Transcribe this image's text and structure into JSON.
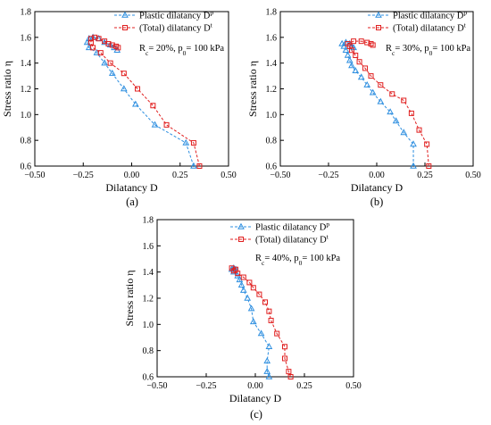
{
  "chart_data": [
    {
      "type": "line",
      "caption": "(a)",
      "annotation": "R_c= 20%, p_0= 100 kPa",
      "xlabel": "Dilatancy D",
      "ylabel": "Stress ratio η",
      "xlim": [
        -0.5,
        0.5
      ],
      "ylim": [
        0.6,
        1.8
      ],
      "xticks": [
        "−0.50",
        "−0.25",
        "0.00",
        "0.25",
        "0.50"
      ],
      "yticks": [
        "0.6",
        "0.8",
        "1.0",
        "1.2",
        "1.4",
        "1.6",
        "1.8"
      ],
      "legend_position": "top-right",
      "series": [
        {
          "name": "Plastic dilatancy D^p",
          "color": "#2e8fe0",
          "marker": "triangle",
          "points": [
            [
              0.32,
              0.6
            ],
            [
              0.28,
              0.78
            ],
            [
              0.12,
              0.92
            ],
            [
              0.02,
              1.08
            ],
            [
              -0.04,
              1.2
            ],
            [
              -0.1,
              1.32
            ],
            [
              -0.14,
              1.4
            ],
            [
              -0.18,
              1.48
            ],
            [
              -0.22,
              1.52
            ],
            [
              -0.23,
              1.56
            ],
            [
              -0.22,
              1.59
            ],
            [
              -0.2,
              1.6
            ],
            [
              -0.17,
              1.59
            ],
            [
              -0.14,
              1.56
            ],
            [
              -0.11,
              1.54
            ],
            [
              -0.09,
              1.52
            ],
            [
              -0.075,
              1.5
            ]
          ]
        },
        {
          "name": "(Total) dilatancy D^t",
          "color": "#e02020",
          "marker": "square",
          "points": [
            [
              0.35,
              0.6
            ],
            [
              0.32,
              0.78
            ],
            [
              0.18,
              0.92
            ],
            [
              0.11,
              1.07
            ],
            [
              0.03,
              1.2
            ],
            [
              -0.04,
              1.32
            ],
            [
              -0.11,
              1.4
            ],
            [
              -0.16,
              1.48
            ],
            [
              -0.2,
              1.52
            ],
            [
              -0.21,
              1.56
            ],
            [
              -0.21,
              1.59
            ],
            [
              -0.19,
              1.6
            ],
            [
              -0.17,
              1.59
            ],
            [
              -0.14,
              1.57
            ],
            [
              -0.12,
              1.55
            ],
            [
              -0.1,
              1.54
            ],
            [
              -0.08,
              1.53
            ],
            [
              -0.07,
              1.52
            ]
          ]
        }
      ]
    },
    {
      "type": "line",
      "caption": "(b)",
      "annotation": "R_c= 30%, p_0= 100 kPa",
      "xlabel": "Dilatancy D",
      "ylabel": "Stress ratio η",
      "xlim": [
        -0.5,
        0.5
      ],
      "ylim": [
        0.6,
        1.8
      ],
      "xticks": [
        "−0.50",
        "−0.25",
        "0.00",
        "0.25",
        "0.50"
      ],
      "yticks": [
        "0.6",
        "0.8",
        "1.0",
        "1.2",
        "1.4",
        "1.6",
        "1.8"
      ],
      "legend_position": "top-right",
      "series": [
        {
          "name": "Plastic dilatancy D^p",
          "color": "#2e8fe0",
          "marker": "triangle",
          "points": [
            [
              0.19,
              0.6
            ],
            [
              0.19,
              0.77
            ],
            [
              0.14,
              0.86
            ],
            [
              0.1,
              0.95
            ],
            [
              0.07,
              1.02
            ],
            [
              0.02,
              1.1
            ],
            [
              -0.02,
              1.17
            ],
            [
              -0.05,
              1.23
            ],
            [
              -0.08,
              1.29
            ],
            [
              -0.11,
              1.34
            ],
            [
              -0.13,
              1.38
            ],
            [
              -0.14,
              1.42
            ],
            [
              -0.15,
              1.46
            ],
            [
              -0.16,
              1.5
            ],
            [
              -0.17,
              1.53
            ],
            [
              -0.18,
              1.55
            ],
            [
              -0.16,
              1.56
            ],
            [
              -0.14,
              1.55
            ],
            [
              -0.13,
              1.53
            ],
            [
              -0.12,
              1.52
            ]
          ]
        },
        {
          "name": "(Total) dilatancy D^t",
          "color": "#e02020",
          "marker": "square",
          "points": [
            [
              0.27,
              0.6
            ],
            [
              0.26,
              0.77
            ],
            [
              0.22,
              0.88
            ],
            [
              0.18,
              1.01
            ],
            [
              0.14,
              1.11
            ],
            [
              0.08,
              1.16
            ],
            [
              0.02,
              1.23
            ],
            [
              -0.03,
              1.3
            ],
            [
              -0.06,
              1.36
            ],
            [
              -0.09,
              1.41
            ],
            [
              -0.11,
              1.46
            ],
            [
              -0.13,
              1.5
            ],
            [
              -0.14,
              1.53
            ],
            [
              -0.15,
              1.55
            ],
            [
              -0.12,
              1.57
            ],
            [
              -0.08,
              1.57
            ],
            [
              -0.05,
              1.56
            ],
            [
              -0.03,
              1.55
            ],
            [
              -0.02,
              1.54
            ]
          ]
        }
      ]
    },
    {
      "type": "line",
      "caption": "(c)",
      "annotation": "R_c= 40%, p_0= 100 kPa",
      "xlabel": "Dilatancy D",
      "ylabel": "Stress ratio η",
      "xlim": [
        -0.5,
        0.5
      ],
      "ylim": [
        0.6,
        1.8
      ],
      "xticks": [
        "−0.50",
        "−0.25",
        "0.00",
        "0.25",
        "0.50"
      ],
      "yticks": [
        "0.6",
        "0.8",
        "1.0",
        "1.2",
        "1.4",
        "1.6",
        "1.8"
      ],
      "legend_position": "top-right",
      "series": [
        {
          "name": "Plastic dilatancy D^p",
          "color": "#2e8fe0",
          "marker": "triangle",
          "points": [
            [
              0.07,
              0.6
            ],
            [
              0.06,
              0.64
            ],
            [
              0.06,
              0.72
            ],
            [
              0.07,
              0.83
            ],
            [
              0.03,
              0.93
            ],
            [
              -0.01,
              1.02
            ],
            [
              -0.02,
              1.12
            ],
            [
              -0.04,
              1.2
            ],
            [
              -0.06,
              1.26
            ],
            [
              -0.07,
              1.3
            ],
            [
              -0.08,
              1.34
            ],
            [
              -0.09,
              1.37
            ],
            [
              -0.11,
              1.4
            ],
            [
              -0.12,
              1.42
            ],
            [
              -0.11,
              1.43
            ],
            [
              -0.1,
              1.42
            ]
          ]
        },
        {
          "name": "(Total) dilatancy D^t",
          "color": "#e02020",
          "marker": "square",
          "points": [
            [
              0.18,
              0.6
            ],
            [
              0.17,
              0.64
            ],
            [
              0.15,
              0.74
            ],
            [
              0.15,
              0.83
            ],
            [
              0.11,
              0.93
            ],
            [
              0.08,
              1.03
            ],
            [
              0.07,
              1.1
            ],
            [
              0.05,
              1.17
            ],
            [
              0.02,
              1.23
            ],
            [
              -0.01,
              1.28
            ],
            [
              -0.03,
              1.32
            ],
            [
              -0.06,
              1.36
            ],
            [
              -0.09,
              1.39
            ],
            [
              -0.11,
              1.41
            ],
            [
              -0.12,
              1.43
            ],
            [
              -0.1,
              1.42
            ]
          ]
        }
      ]
    }
  ]
}
